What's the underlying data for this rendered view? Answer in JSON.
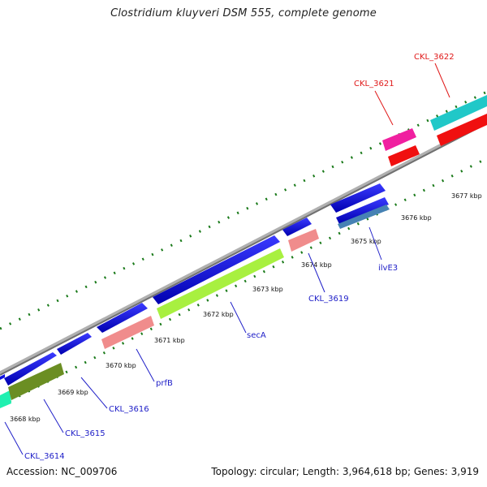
{
  "title": "Clostridium kluyveri DSM 555, complete genome",
  "footer": {
    "accession": "Accession: NC_009706",
    "summary": "Topology: circular; Length: 3,964,618 bp; Genes: 3,919"
  },
  "scale": {
    "tick_labels": [
      "3668 kbp",
      "3669 kbp",
      "3670 kbp",
      "3671 kbp",
      "3672 kbp",
      "3673 kbp",
      "3674 kbp",
      "3675 kbp",
      "3676 kbp",
      "3677 kbp"
    ]
  },
  "gene_labels": [
    {
      "text": "CKL_3614",
      "color": "#2020c8"
    },
    {
      "text": "CKL_3615",
      "color": "#2020c8"
    },
    {
      "text": "CKL_3616",
      "color": "#2020c8"
    },
    {
      "text": "prfB",
      "color": "#2020c8"
    },
    {
      "text": "secA",
      "color": "#2020c8"
    },
    {
      "text": "CKL_3619",
      "color": "#2020c8"
    },
    {
      "text": "ilvE3",
      "color": "#2020c8"
    },
    {
      "text": "CKL_3621",
      "color": "#e01818"
    },
    {
      "text": "CKL_3622",
      "color": "#e01818"
    }
  ],
  "colors": {
    "backbone": "#8c8c8c",
    "cds_forward": "#1010e0",
    "tick": "#1a7a1a",
    "salmon": "#f08c8c",
    "lime": "#a8f040",
    "olive": "#6b8e23",
    "cyan": "#20c8c8",
    "magenta": "#f020a0",
    "red": "#f01010",
    "steel": "#4682b4",
    "aqua": "#20f0a0"
  }
}
